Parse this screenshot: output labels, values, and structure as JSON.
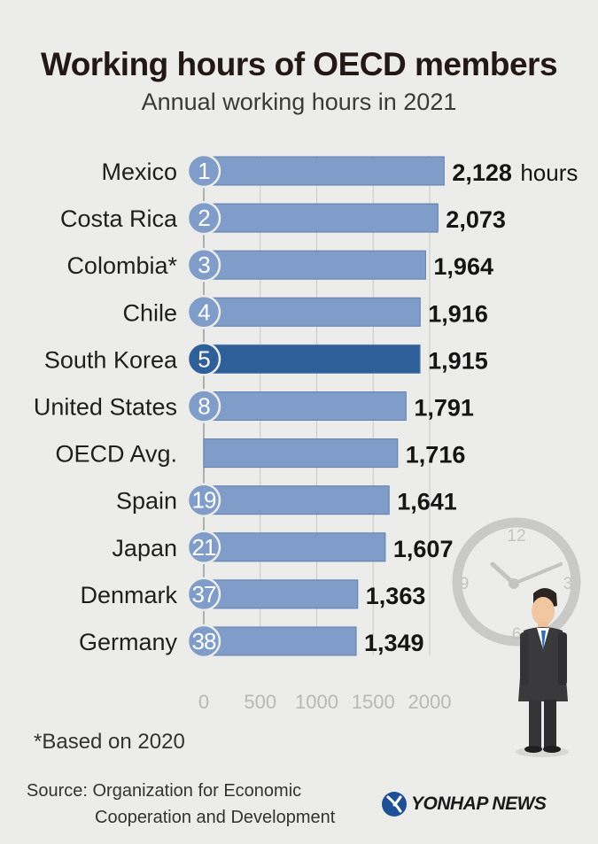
{
  "header": {
    "title": "Working hours of OECD members",
    "subtitle": "Annual working hours in 2021"
  },
  "chart_data": {
    "type": "bar",
    "orientation": "horizontal",
    "title": "Working hours of OECD members",
    "subtitle": "Annual working hours in 2021",
    "categories": [
      "Mexico",
      "Costa Rica",
      "Colombia*",
      "Chile",
      "South Korea",
      "United States",
      "OECD Avg.",
      "Spain",
      "Japan",
      "Denmark",
      "Germany"
    ],
    "ranks": [
      "1",
      "2",
      "3",
      "4",
      "5",
      "8",
      "",
      "19",
      "21",
      "37",
      "38"
    ],
    "values": [
      2128,
      2073,
      1964,
      1916,
      1915,
      1791,
      1716,
      1641,
      1607,
      1363,
      1349
    ],
    "value_labels": [
      "2,128",
      "2,073",
      "1,964",
      "1,916",
      "1,915",
      "1,791",
      "1,716",
      "1,641",
      "1,607",
      "1,363",
      "1,349"
    ],
    "unit_label": "hours",
    "highlight_category": "South Korea",
    "xticks": [
      0,
      500,
      1000,
      1500,
      2000
    ],
    "xlim": [
      0,
      2128
    ],
    "grid": true,
    "colors": {
      "bar": "#7f9dc8",
      "bar_highlight": "#2f5f98",
      "bar_border": "#5e7fae",
      "rank_circle": "#7f9dc8",
      "rank_circle_highlight": "#2f5f98"
    }
  },
  "footnote": "*Based on 2020",
  "source": {
    "line1": "Source: Organization for Economic",
    "line2": "Cooperation and Development"
  },
  "logo": {
    "text": "YONHAP NEWS",
    "icon": "yonhap-logo-icon"
  },
  "illustration": {
    "icons": [
      "clock-icon",
      "businessman-icon"
    ],
    "clock_numbers": [
      "12",
      "3",
      "6",
      "9"
    ]
  }
}
